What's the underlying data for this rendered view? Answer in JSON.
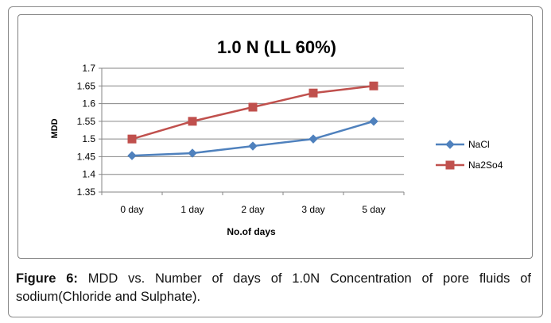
{
  "chart_data": {
    "type": "line",
    "title": "1.0  N (LL 60%)",
    "xlabel": "No.of days",
    "ylabel": "MDD",
    "categories": [
      "0 day",
      "1 day",
      "2 day",
      "3 day",
      "5 day"
    ],
    "ylim": [
      1.35,
      1.7
    ],
    "yticks": [
      "1.35",
      "1.4",
      "1.45",
      "1.5",
      "1.55",
      "1.6",
      "1.65",
      "1.7"
    ],
    "grid": true,
    "legend_position": "right",
    "series": [
      {
        "name": "NaCl",
        "color": "#4f81bd",
        "marker": "diamond",
        "values": [
          1.453,
          1.46,
          1.48,
          1.5,
          1.55
        ]
      },
      {
        "name": "Na2So4",
        "color": "#c0504d",
        "marker": "square",
        "values": [
          1.5,
          1.55,
          1.59,
          1.63,
          1.65
        ]
      }
    ]
  },
  "caption": {
    "label": "Figure 6:",
    "text": " MDD vs. Number of days of 1.0N Concentration of pore fluids of sodium(Chloride and Sulphate)."
  }
}
